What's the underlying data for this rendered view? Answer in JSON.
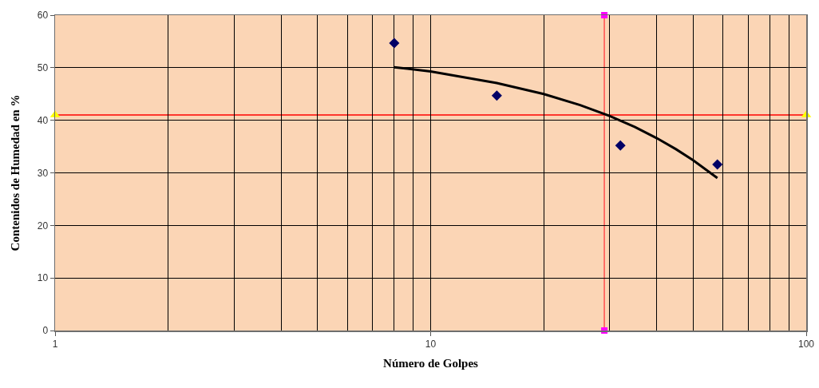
{
  "chart_data": {
    "type": "scatter",
    "xlabel": "Número de Golpes",
    "ylabel": "Contenidos de Humedad en %",
    "log": "x",
    "xlim": [
      1,
      100
    ],
    "xticks": [
      1,
      {
        "value": 2,
        "label": null
      },
      {
        "value": 3,
        "label": null
      },
      {
        "value": 4,
        "label": null
      },
      {
        "value": 5,
        "label": null
      },
      {
        "value": 6,
        "label": null
      },
      {
        "value": 7,
        "label": null
      },
      {
        "value": 8,
        "label": null
      },
      {
        "value": 9,
        "label": null
      },
      10,
      {
        "value": 20,
        "label": null
      },
      {
        "value": 30,
        "label": null
      },
      {
        "value": 40,
        "label": null
      },
      {
        "value": 50,
        "label": null
      },
      {
        "value": 60,
        "label": null
      },
      {
        "value": 70,
        "label": null
      },
      {
        "value": 80,
        "label": null
      },
      {
        "value": 90,
        "label": null
      },
      100
    ],
    "ylim": [
      0,
      60
    ],
    "yticks": [
      0,
      10,
      20,
      30,
      40,
      50,
      60
    ],
    "grid": true,
    "ref_lines": [
      {
        "axis": "y",
        "value": 41,
        "color": "#ff0000"
      },
      {
        "axis": "x",
        "value": 29,
        "color": "#ff4d4d"
      }
    ],
    "series": [
      {
        "type": "line",
        "color": "#000000",
        "marker": "none",
        "x": [
          8,
          10,
          15,
          20,
          25,
          30,
          35,
          40,
          45,
          50,
          58
        ],
        "values": [
          50.1,
          49.3,
          47.1,
          45.0,
          42.9,
          40.8,
          38.7,
          36.6,
          34.5,
          32.4,
          29.0
        ]
      },
      {
        "type": "scatter",
        "color": "#000066",
        "marker": "diamond",
        "x": [
          8,
          15,
          32,
          58
        ],
        "values": [
          54.7,
          44.7,
          35.2,
          31.6
        ]
      },
      {
        "type": "scatter",
        "color": "#ffff00",
        "marker": "triangle",
        "x": [
          1,
          100
        ],
        "values": [
          41,
          41
        ]
      },
      {
        "type": "scatter",
        "color": "#ff00ff",
        "marker": "square",
        "x": [
          29,
          29
        ],
        "values": [
          0,
          60
        ]
      }
    ]
  }
}
